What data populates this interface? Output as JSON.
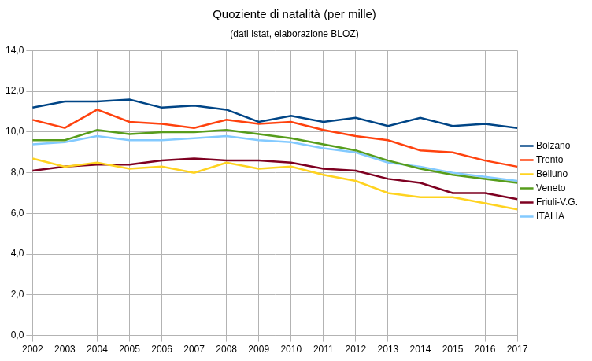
{
  "chart_data": {
    "type": "line",
    "title": "Quoziente di natalità (per mille)",
    "subtitle": "(dati Istat, elaborazione BLOZ)",
    "categories": [
      "2002",
      "2003",
      "2004",
      "2005",
      "2006",
      "2007",
      "2008",
      "2009",
      "2010",
      "2011",
      "2012",
      "2013",
      "2014",
      "2015",
      "2016",
      "2017"
    ],
    "series": [
      {
        "name": "Bolzano",
        "color": "#004586",
        "values": [
          11.2,
          11.5,
          11.5,
          11.6,
          11.2,
          11.3,
          11.1,
          10.5,
          10.8,
          10.5,
          10.7,
          10.3,
          10.7,
          10.3,
          10.4,
          10.2
        ]
      },
      {
        "name": "Trento",
        "color": "#ff420e",
        "values": [
          10.6,
          10.2,
          11.1,
          10.5,
          10.4,
          10.2,
          10.6,
          10.4,
          10.5,
          10.1,
          9.8,
          9.6,
          9.1,
          9.0,
          8.6,
          8.3
        ]
      },
      {
        "name": "Belluno",
        "color": "#ffd320",
        "values": [
          8.7,
          8.3,
          8.5,
          8.2,
          8.3,
          8.0,
          8.5,
          8.2,
          8.3,
          7.9,
          7.6,
          7.0,
          6.8,
          6.8,
          6.5,
          6.2
        ]
      },
      {
        "name": "Veneto",
        "color": "#579d1c",
        "values": [
          9.6,
          9.6,
          10.1,
          9.9,
          10.0,
          10.0,
          10.1,
          9.9,
          9.7,
          9.4,
          9.1,
          8.6,
          8.2,
          7.9,
          7.7,
          7.5
        ]
      },
      {
        "name": "Friuli-V.G.",
        "color": "#7e0021",
        "values": [
          8.1,
          8.3,
          8.4,
          8.4,
          8.6,
          8.7,
          8.6,
          8.6,
          8.5,
          8.2,
          8.1,
          7.7,
          7.5,
          7.0,
          7.0,
          6.7
        ]
      },
      {
        "name": "ITALIA",
        "color": "#83caff",
        "values": [
          9.4,
          9.5,
          9.8,
          9.6,
          9.6,
          9.7,
          9.8,
          9.6,
          9.5,
          9.2,
          9.0,
          8.5,
          8.3,
          8.0,
          7.8,
          7.6
        ]
      }
    ],
    "ylim": [
      0,
      14
    ],
    "yticks": [
      {
        "value": 0,
        "label": "0,0"
      },
      {
        "value": 2,
        "label": "2,0"
      },
      {
        "value": 4,
        "label": "4,0"
      },
      {
        "value": 6,
        "label": "6,0"
      },
      {
        "value": 8,
        "label": "8,0"
      },
      {
        "value": 10,
        "label": "10,0"
      },
      {
        "value": 12,
        "label": "12,0"
      },
      {
        "value": 14,
        "label": "14,0"
      }
    ],
    "grid": true,
    "legend": "right"
  }
}
